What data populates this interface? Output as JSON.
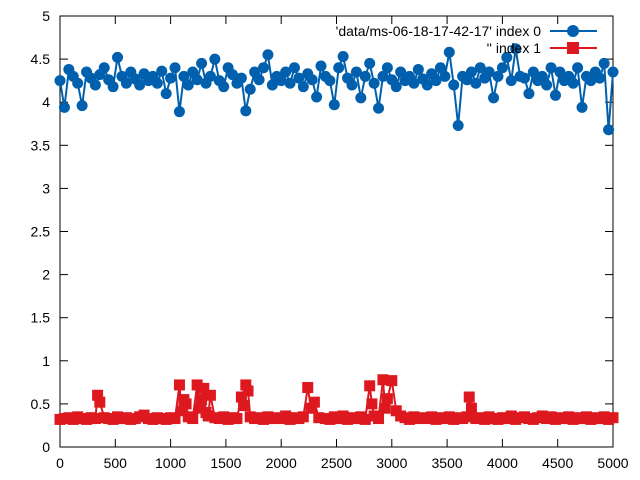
{
  "chart_data": {
    "type": "line",
    "title": "",
    "xlabel": "",
    "ylabel": "",
    "xlim": [
      0,
      5000
    ],
    "ylim": [
      0,
      5
    ],
    "x_ticks": [
      0,
      500,
      1000,
      1500,
      2000,
      2500,
      3000,
      3500,
      4000,
      4500,
      5000
    ],
    "y_ticks": [
      0,
      0.5,
      1,
      1.5,
      2,
      2.5,
      3,
      3.5,
      4,
      4.5,
      5
    ],
    "x_tick_labels": [
      "0",
      "500",
      "1000",
      "1500",
      "2000",
      "2500",
      "3000",
      "3500",
      "4000",
      "4500",
      "5000"
    ],
    "y_tick_labels": [
      "0",
      "0.5",
      "1",
      "1.5",
      "2",
      "2.5",
      "3",
      "3.5",
      "4",
      "4.5",
      "5"
    ],
    "grid": false,
    "legend_position": "top-right",
    "series": [
      {
        "name": "'data/ms-06-18-17-42-17' index 0",
        "color": "#0060ad",
        "marker": "circle",
        "x": [
          0,
          40,
          80,
          120,
          160,
          200,
          240,
          280,
          320,
          360,
          400,
          440,
          480,
          520,
          560,
          600,
          640,
          680,
          720,
          760,
          800,
          840,
          880,
          920,
          960,
          1000,
          1040,
          1080,
          1120,
          1160,
          1200,
          1240,
          1280,
          1320,
          1360,
          1400,
          1440,
          1480,
          1520,
          1560,
          1600,
          1640,
          1680,
          1720,
          1760,
          1800,
          1840,
          1880,
          1920,
          1960,
          2000,
          2040,
          2080,
          2120,
          2160,
          2200,
          2240,
          2280,
          2320,
          2360,
          2400,
          2440,
          2480,
          2520,
          2560,
          2600,
          2640,
          2680,
          2720,
          2760,
          2800,
          2840,
          2880,
          2920,
          2960,
          3000,
          3040,
          3080,
          3120,
          3160,
          3200,
          3240,
          3280,
          3320,
          3360,
          3400,
          3440,
          3480,
          3520,
          3560,
          3600,
          3640,
          3680,
          3720,
          3760,
          3800,
          3840,
          3880,
          3920,
          3960,
          4000,
          4040,
          4080,
          4120,
          4160,
          4200,
          4240,
          4280,
          4320,
          4360,
          4400,
          4440,
          4480,
          4520,
          4560,
          4600,
          4640,
          4680,
          4720,
          4760,
          4800,
          4840,
          4880,
          4920,
          4960,
          5000
        ],
        "values": [
          4.25,
          3.94,
          4.38,
          4.3,
          4.22,
          3.96,
          4.35,
          4.28,
          4.2,
          4.32,
          4.4,
          4.26,
          4.18,
          4.52,
          4.3,
          4.22,
          4.35,
          4.27,
          4.2,
          4.33,
          4.25,
          4.3,
          4.22,
          4.36,
          4.1,
          4.28,
          4.4,
          3.89,
          4.3,
          4.2,
          4.35,
          4.26,
          4.45,
          4.22,
          4.3,
          4.5,
          4.25,
          4.18,
          4.4,
          4.32,
          4.22,
          4.28,
          3.9,
          4.15,
          4.35,
          4.26,
          4.4,
          4.55,
          4.2,
          4.3,
          4.25,
          4.35,
          4.22,
          4.4,
          4.28,
          4.18,
          4.33,
          4.26,
          4.06,
          4.42,
          4.3,
          4.25,
          3.97,
          4.4,
          4.53,
          4.28,
          4.2,
          4.35,
          4.05,
          4.3,
          4.45,
          4.22,
          3.93,
          4.3,
          4.4,
          4.26,
          4.18,
          4.35,
          4.25,
          4.3,
          4.22,
          4.38,
          4.27,
          4.2,
          4.33,
          4.25,
          4.4,
          4.3,
          4.58,
          4.2,
          3.73,
          4.3,
          4.26,
          4.35,
          4.22,
          4.4,
          4.28,
          4.35,
          4.05,
          4.3,
          4.4,
          4.52,
          4.25,
          4.62,
          4.3,
          4.28,
          4.1,
          4.35,
          4.25,
          4.3,
          4.2,
          4.4,
          4.08,
          4.35,
          4.25,
          4.3,
          4.22,
          4.4,
          3.94,
          4.3,
          4.25,
          4.35,
          4.28,
          4.45,
          3.68,
          4.35
        ]
      },
      {
        "name": "'' index 1",
        "color": "#dd181f",
        "marker": "square",
        "x": [
          0,
          40,
          80,
          120,
          160,
          200,
          240,
          280,
          320,
          340,
          360,
          400,
          440,
          480,
          520,
          560,
          600,
          640,
          680,
          720,
          760,
          800,
          840,
          880,
          920,
          960,
          1000,
          1040,
          1080,
          1100,
          1120,
          1140,
          1160,
          1200,
          1240,
          1260,
          1280,
          1300,
          1320,
          1340,
          1360,
          1400,
          1440,
          1480,
          1520,
          1560,
          1600,
          1640,
          1660,
          1680,
          1700,
          1720,
          1760,
          1800,
          1840,
          1880,
          1920,
          1960,
          2000,
          2040,
          2080,
          2120,
          2160,
          2200,
          2240,
          2270,
          2300,
          2340,
          2400,
          2440,
          2480,
          2520,
          2560,
          2600,
          2640,
          2680,
          2720,
          2760,
          2800,
          2820,
          2840,
          2880,
          2920,
          2940,
          2960,
          3000,
          3040,
          3080,
          3120,
          3160,
          3200,
          3240,
          3280,
          3320,
          3360,
          3400,
          3440,
          3480,
          3520,
          3560,
          3600,
          3640,
          3680,
          3700,
          3720,
          3760,
          3800,
          3840,
          3880,
          3920,
          3960,
          4000,
          4040,
          4080,
          4120,
          4160,
          4200,
          4240,
          4280,
          4320,
          4360,
          4400,
          4440,
          4480,
          4520,
          4560,
          4600,
          4640,
          4680,
          4720,
          4760,
          4800,
          4840,
          4880,
          4920,
          4960,
          5000
        ],
        "values": [
          0.32,
          0.33,
          0.34,
          0.32,
          0.35,
          0.33,
          0.32,
          0.34,
          0.33,
          0.6,
          0.52,
          0.34,
          0.33,
          0.32,
          0.35,
          0.33,
          0.34,
          0.32,
          0.33,
          0.35,
          0.37,
          0.33,
          0.32,
          0.34,
          0.33,
          0.32,
          0.34,
          0.33,
          0.72,
          0.42,
          0.55,
          0.5,
          0.35,
          0.33,
          0.72,
          0.45,
          0.55,
          0.68,
          0.4,
          0.36,
          0.6,
          0.34,
          0.33,
          0.35,
          0.32,
          0.34,
          0.33,
          0.58,
          0.48,
          0.72,
          0.65,
          0.35,
          0.33,
          0.34,
          0.32,
          0.35,
          0.33,
          0.34,
          0.33,
          0.36,
          0.32,
          0.34,
          0.33,
          0.35,
          0.69,
          0.45,
          0.52,
          0.34,
          0.33,
          0.32,
          0.35,
          0.33,
          0.36,
          0.32,
          0.34,
          0.33,
          0.35,
          0.32,
          0.71,
          0.5,
          0.36,
          0.33,
          0.78,
          0.45,
          0.56,
          0.77,
          0.42,
          0.36,
          0.34,
          0.32,
          0.35,
          0.33,
          0.34,
          0.33,
          0.35,
          0.32,
          0.34,
          0.33,
          0.35,
          0.32,
          0.34,
          0.33,
          0.35,
          0.58,
          0.45,
          0.33,
          0.34,
          0.32,
          0.35,
          0.33,
          0.32,
          0.34,
          0.33,
          0.36,
          0.32,
          0.34,
          0.35,
          0.33,
          0.32,
          0.34,
          0.36,
          0.33,
          0.35,
          0.32,
          0.34,
          0.33,
          0.35,
          0.32,
          0.34,
          0.33,
          0.35,
          0.32,
          0.34,
          0.33,
          0.35,
          0.32,
          0.34
        ]
      }
    ]
  }
}
